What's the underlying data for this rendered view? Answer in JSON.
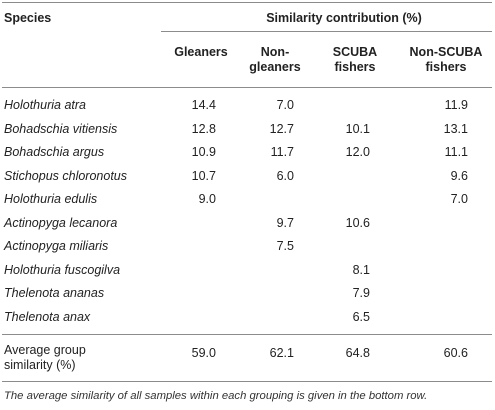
{
  "header": {
    "species": "Species",
    "similarity": "Similarity contribution (%)",
    "columns": [
      [
        "Gleaners"
      ],
      [
        "Non-",
        "gleaners"
      ],
      [
        "SCUBA",
        "fishers"
      ],
      [
        "Non-SCUBA",
        "fishers"
      ]
    ]
  },
  "rows": [
    {
      "species": "Holothuria atra",
      "values": [
        "14.4",
        "7.0",
        "",
        "11.9"
      ]
    },
    {
      "species": "Bohadschia vitiensis",
      "values": [
        "12.8",
        "12.7",
        "10.1",
        "13.1"
      ]
    },
    {
      "species": "Bohadschia argus",
      "values": [
        "10.9",
        "11.7",
        "12.0",
        "11.1"
      ]
    },
    {
      "species": "Stichopus chloronotus",
      "values": [
        "10.7",
        "6.0",
        "",
        "9.6"
      ]
    },
    {
      "species": "Holothuria edulis",
      "values": [
        "9.0",
        "",
        "",
        "7.0"
      ]
    },
    {
      "species": "Actinopyga lecanora",
      "values": [
        "",
        "9.7",
        "10.6",
        ""
      ]
    },
    {
      "species": "Actinopyga miliaris",
      "values": [
        "",
        "7.5",
        "",
        ""
      ]
    },
    {
      "species": "Holothuria fuscogilva",
      "values": [
        "",
        "",
        "8.1",
        ""
      ]
    },
    {
      "species": "Thelenota ananas",
      "values": [
        "",
        "",
        "7.9",
        ""
      ]
    },
    {
      "species": "Thelenota anax",
      "values": [
        "",
        "",
        "6.5",
        ""
      ]
    }
  ],
  "summary": {
    "label": [
      "Average group",
      "similarity (%)"
    ],
    "values": [
      "59.0",
      "62.1",
      "64.8",
      "60.6"
    ]
  },
  "footnote": "The average similarity of all samples within each grouping is given in the bottom row."
}
